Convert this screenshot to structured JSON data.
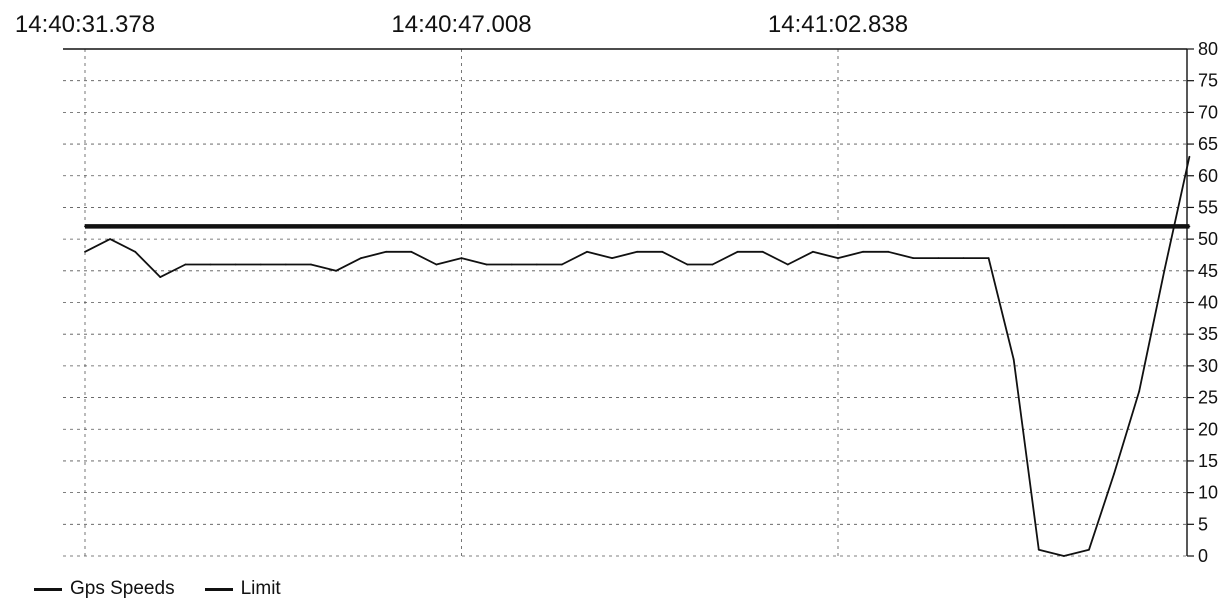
{
  "chart_data": {
    "type": "line",
    "x_tick_labels": [
      "14:40:31.378",
      "14:40:47.008",
      "14:41:02.838"
    ],
    "y_axis": {
      "range": [
        0,
        80
      ],
      "ticks": [
        0,
        5,
        10,
        15,
        20,
        25,
        30,
        35,
        40,
        45,
        50,
        55,
        60,
        65,
        70,
        75,
        80
      ],
      "side": "right"
    },
    "grid": true,
    "legend_position": "bottom-left",
    "series": [
      {
        "name": "Gps Speeds",
        "color": "#111111",
        "values": [
          48,
          50,
          48,
          44,
          46,
          46,
          46,
          46,
          46,
          46,
          45,
          47,
          48,
          48,
          46,
          47,
          46,
          46,
          46,
          46,
          48,
          47,
          48,
          48,
          46,
          46,
          48,
          48,
          46,
          48,
          47,
          48,
          48,
          47,
          47,
          47,
          47,
          31,
          1,
          0,
          1,
          13,
          26,
          45,
          63
        ]
      },
      {
        "name": "Limit",
        "color": "#111111",
        "values": [
          52,
          52,
          52,
          52,
          52,
          52,
          52,
          52,
          52,
          52,
          52,
          52,
          52,
          52,
          52,
          52,
          52,
          52,
          52,
          52,
          52,
          52,
          52,
          52,
          52,
          52,
          52,
          52,
          52,
          52,
          52,
          52,
          52,
          52,
          52,
          52,
          52,
          52,
          52,
          52,
          52,
          52,
          52,
          52,
          52
        ]
      }
    ]
  }
}
